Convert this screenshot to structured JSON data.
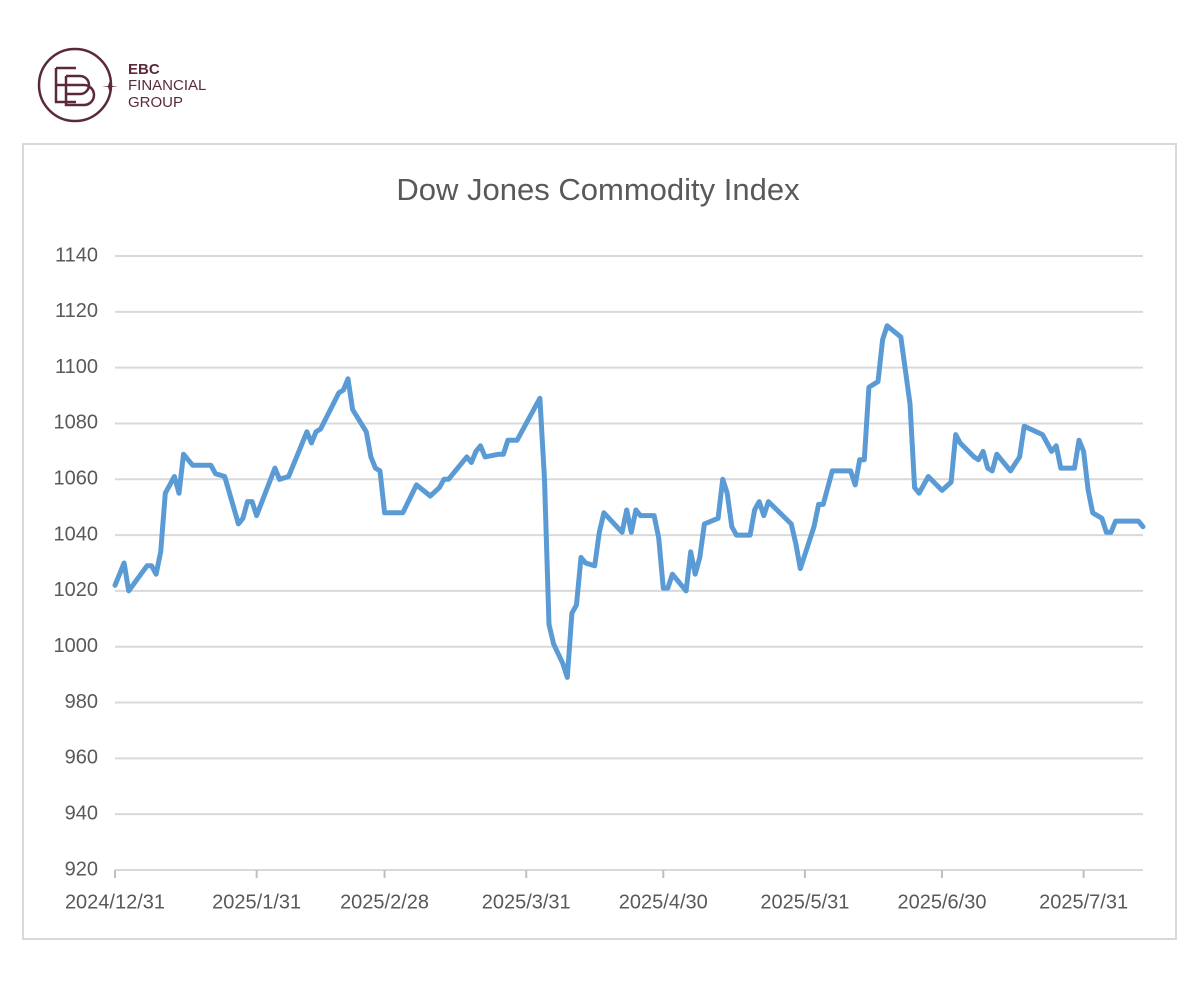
{
  "logo": {
    "lines": [
      "EBC",
      "FINANCIAL",
      "GROUP"
    ]
  },
  "chart_data": {
    "type": "line",
    "title": "Dow Jones Commodity Index",
    "color": "#5b9bd5",
    "grid": true,
    "x": [
      "2024/12/31",
      "2025/1/2",
      "2025/1/3",
      "2025/1/7",
      "2025/1/8",
      "2025/1/9",
      "2025/1/10",
      "2025/1/11",
      "2025/1/13",
      "2025/1/14",
      "2025/1/15",
      "2025/1/17",
      "2025/1/21",
      "2025/1/22",
      "2025/1/24",
      "2025/1/27",
      "2025/1/28",
      "2025/1/29",
      "2025/1/30",
      "2025/1/31",
      "2025/2/4",
      "2025/2/5",
      "2025/2/7",
      "2025/2/11",
      "2025/2/12",
      "2025/2/13",
      "2025/2/14",
      "2025/2/18",
      "2025/2/19",
      "2025/2/20",
      "2025/2/21",
      "2025/2/24",
      "2025/2/25",
      "2025/2/26",
      "2025/2/27",
      "2025/2/28",
      "2025/3/4",
      "2025/3/7",
      "2025/3/10",
      "2025/3/12",
      "2025/3/13",
      "2025/3/14",
      "2025/3/16",
      "2025/3/18",
      "2025/3/19",
      "2025/3/20",
      "2025/3/21",
      "2025/3/22",
      "2025/3/25",
      "2025/3/26",
      "2025/3/27",
      "2025/3/29",
      "2025/4/2",
      "2025/4/3",
      "2025/4/4",
      "2025/4/5",
      "2025/4/6",
      "2025/4/8",
      "2025/4/9",
      "2025/4/10",
      "2025/4/11",
      "2025/4/12",
      "2025/4/13",
      "2025/4/15",
      "2025/4/16",
      "2025/4/17",
      "2025/4/21",
      "2025/4/22",
      "2025/4/23",
      "2025/4/24",
      "2025/4/25",
      "2025/4/28",
      "2025/4/29",
      "2025/4/30",
      "2025/5/1",
      "2025/5/2",
      "2025/5/5",
      "2025/5/6",
      "2025/5/7",
      "2025/5/8",
      "2025/5/9",
      "2025/5/12",
      "2025/5/13",
      "2025/5/14",
      "2025/5/15",
      "2025/5/16",
      "2025/5/19",
      "2025/5/20",
      "2025/5/21",
      "2025/5/22",
      "2025/5/23",
      "2025/5/28",
      "2025/5/29",
      "2025/5/30",
      "2025/6/2",
      "2025/6/3",
      "2025/6/4",
      "2025/6/6",
      "2025/6/9",
      "2025/6/10",
      "2025/6/11",
      "2025/6/12",
      "2025/6/13",
      "2025/6/14",
      "2025/6/16",
      "2025/6/17",
      "2025/6/18",
      "2025/6/21",
      "2025/6/23",
      "2025/6/24",
      "2025/6/25",
      "2025/6/27",
      "2025/6/30",
      "2025/7/2",
      "2025/7/3",
      "2025/7/4",
      "2025/7/7",
      "2025/7/8",
      "2025/7/9",
      "2025/7/10",
      "2025/7/11",
      "2025/7/12",
      "2025/7/15",
      "2025/7/17",
      "2025/7/18",
      "2025/7/22",
      "2025/7/23",
      "2025/7/24",
      "2025/7/25",
      "2025/7/26",
      "2025/7/29",
      "2025/7/30",
      "2025/7/31",
      "2025/8/1",
      "2025/8/2",
      "2025/8/4",
      "2025/8/5",
      "2025/8/6",
      "2025/8/7",
      "2025/8/12",
      "2025/8/13"
    ],
    "values": [
      1022,
      1030,
      1020,
      1029,
      1029,
      1026,
      1034,
      1055,
      1061,
      1055,
      1069,
      1065,
      1065,
      1062,
      1061,
      1044,
      1046,
      1052,
      1052,
      1047,
      1064,
      1060,
      1061,
      1077,
      1073,
      1077,
      1078,
      1091,
      1092,
      1096,
      1085,
      1077,
      1068,
      1064,
      1063,
      1048,
      1048,
      1058,
      1054,
      1057,
      1060,
      1060,
      1064,
      1068,
      1066,
      1070,
      1072,
      1068,
      1069,
      1069,
      1074,
      1074,
      1086,
      1089,
      1060,
      1008,
      1001,
      994,
      989,
      1012,
      1015,
      1032,
      1030,
      1029,
      1041,
      1048,
      1041,
      1049,
      1041,
      1049,
      1047,
      1047,
      1039,
      1021,
      1021,
      1026,
      1020,
      1034,
      1026,
      1032,
      1044,
      1046,
      1060,
      1055,
      1043,
      1040,
      1040,
      1049,
      1052,
      1047,
      1052,
      1044,
      1037,
      1028,
      1043,
      1051,
      1051,
      1063,
      1063,
      1063,
      1058,
      1067,
      1067,
      1093,
      1095,
      1110,
      1115,
      1111,
      1087,
      1057,
      1055,
      1061,
      1056,
      1059,
      1076,
      1073,
      1068,
      1067,
      1070,
      1064,
      1063,
      1069,
      1063,
      1068,
      1079,
      1076,
      1073,
      1070,
      1072,
      1064,
      1064,
      1074,
      1070,
      1056,
      1048,
      1046,
      1041,
      1041,
      1045,
      1045,
      1043
    ],
    "xlim": [
      "2024/12/31",
      "2025/8/13"
    ],
    "xticks": [
      "2024/12/31",
      "2025/1/31",
      "2025/2/28",
      "2025/3/31",
      "2025/4/30",
      "2025/5/31",
      "2025/6/30",
      "2025/7/31"
    ],
    "ylim": [
      920,
      1140
    ],
    "yticks": [
      920,
      940,
      960,
      980,
      1000,
      1020,
      1040,
      1060,
      1080,
      1100,
      1120,
      1140
    ]
  }
}
